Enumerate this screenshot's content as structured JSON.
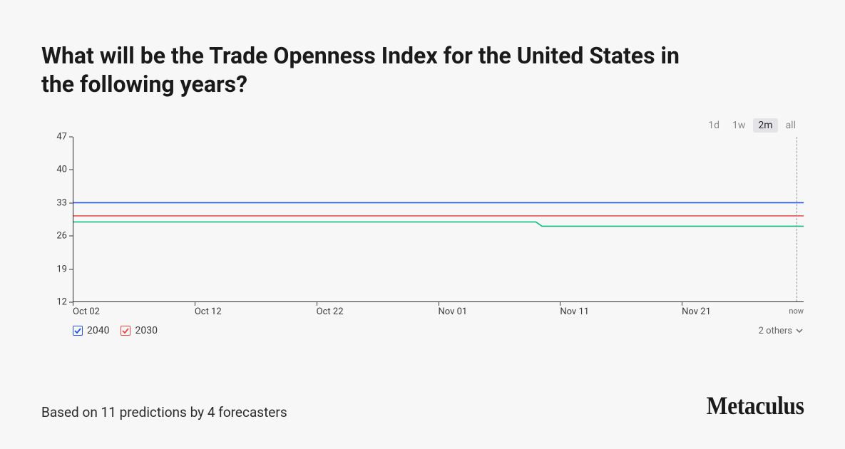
{
  "title": "What will be the Trade Openness Index for the United States in the following years?",
  "range_selector": {
    "options": [
      "1d",
      "1w",
      "2m",
      "all"
    ],
    "active": "2m"
  },
  "chart": {
    "type": "line",
    "background_color": "#f7f7f8",
    "axis_color": "#2a2a2a",
    "tick_font_size": 13,
    "ylim": [
      12,
      47
    ],
    "yticks": [
      12,
      19,
      26,
      33,
      40,
      47
    ],
    "xlim": [
      0,
      60
    ],
    "xticks": [
      {
        "pos": 0,
        "label": "Oct 02"
      },
      {
        "pos": 10,
        "label": "Oct 12"
      },
      {
        "pos": 20,
        "label": "Oct 22"
      },
      {
        "pos": 30,
        "label": "Nov 01"
      },
      {
        "pos": 40,
        "label": "Nov 11"
      },
      {
        "pos": 50,
        "label": "Nov 21"
      },
      {
        "pos": 60,
        "label": "now",
        "is_now": true
      }
    ],
    "now_line_x": 59.4,
    "now_line_color": "#999999",
    "line_width": 1.6,
    "series": [
      {
        "name": "2040",
        "color": "#2453ea",
        "points": [
          [
            0,
            33
          ],
          [
            60,
            33
          ]
        ]
      },
      {
        "name": "2030",
        "color": "#ef4444",
        "points": [
          [
            0,
            30.2
          ],
          [
            60,
            30.2
          ]
        ]
      },
      {
        "name": "other",
        "color": "#10b981",
        "points": [
          [
            0,
            28.9
          ],
          [
            38,
            28.9
          ],
          [
            38.5,
            28.0
          ],
          [
            60,
            28.0
          ]
        ]
      }
    ]
  },
  "legend": {
    "items": [
      {
        "label": "2040",
        "color": "#2453ea",
        "checked": true
      },
      {
        "label": "2030",
        "color": "#ef4444",
        "checked": true
      }
    ],
    "others_label": "2 others"
  },
  "footer_text": "Based on 11 predictions by 4 forecasters",
  "brand": "Metaculus"
}
